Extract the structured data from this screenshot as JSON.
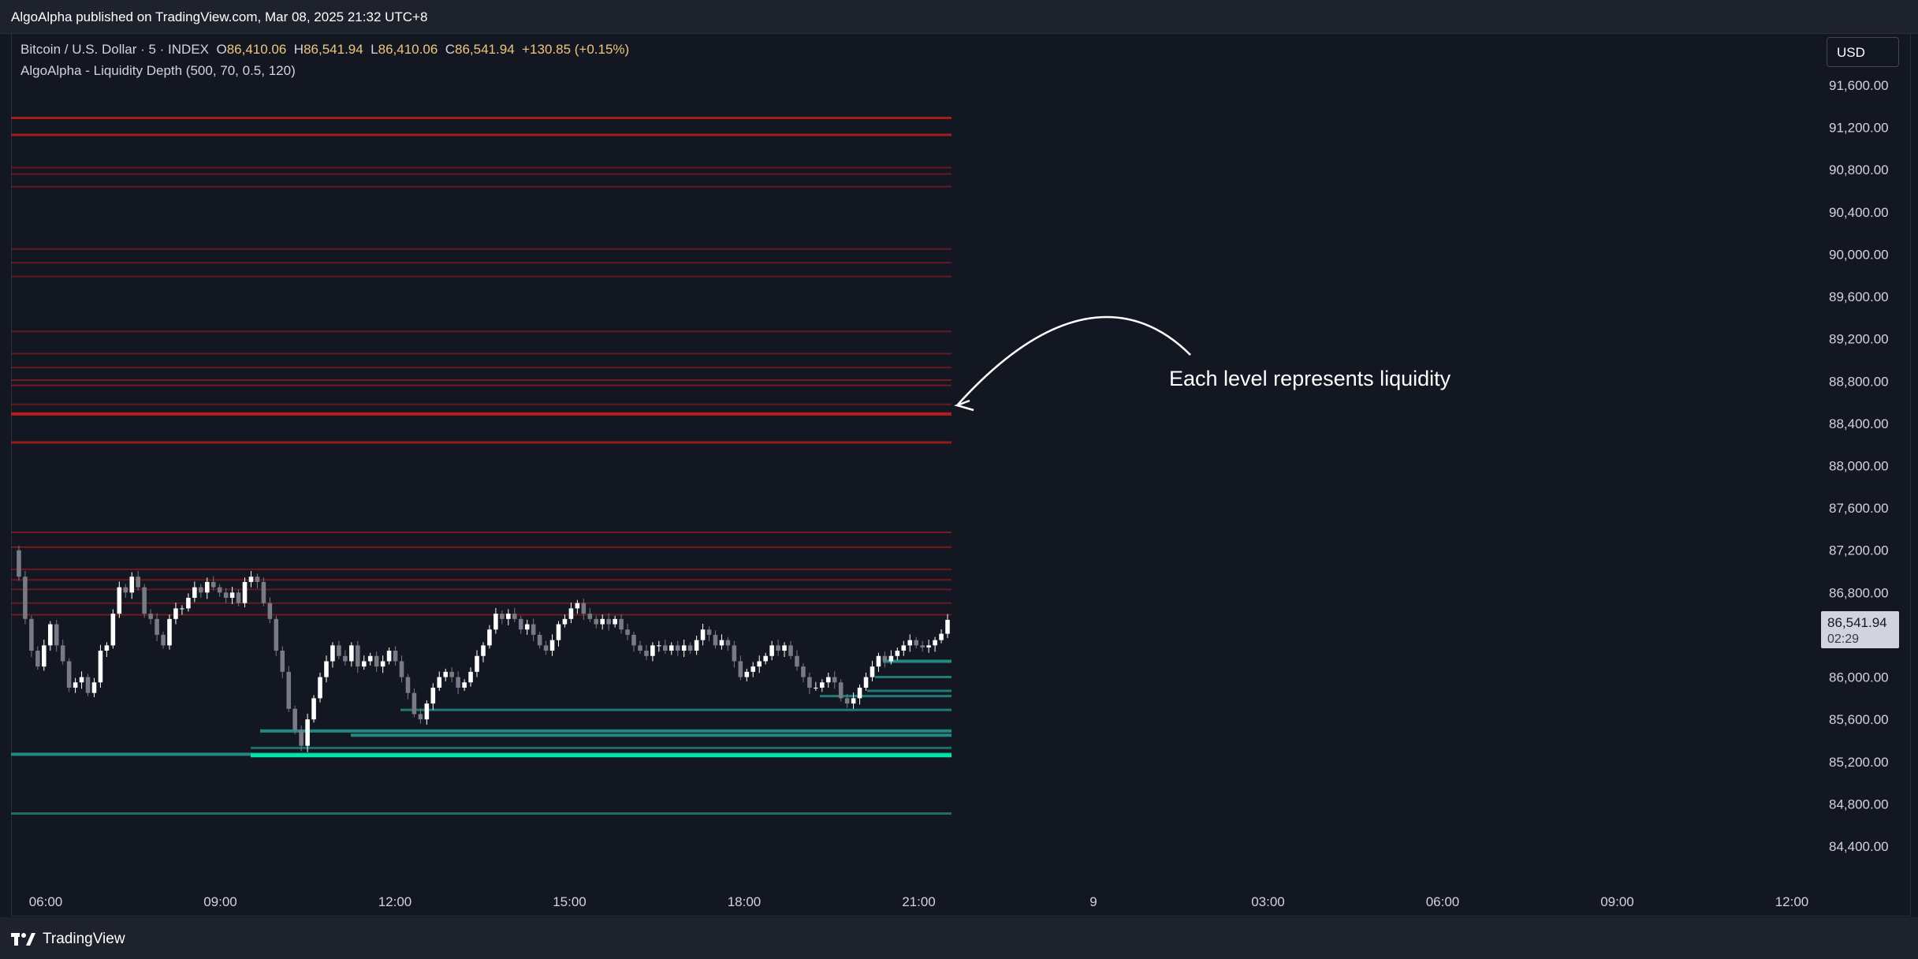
{
  "header": {
    "published_text": "AlgoAlpha published on TradingView.com, Mar 08, 2025 21:32 UTC+8"
  },
  "legend": {
    "symbol": "Bitcoin / U.S. Dollar · 5 · INDEX",
    "open_label": "O",
    "open_value": "86,410.06",
    "high_label": "H",
    "high_value": "86,541.94",
    "low_label": "L",
    "low_value": "86,410.06",
    "close_label": "C",
    "close_value": "86,541.94",
    "change": "+130.85 (+0.15%)",
    "indicator": "AlgoAlpha - Liquidity Depth (500, 70, 0.5, 120)"
  },
  "currency": "USD",
  "price_label": {
    "value": "86,541.94",
    "countdown": "02:29"
  },
  "annotation": {
    "text": "Each level represents liquidity"
  },
  "footer": {
    "brand": "TradingView",
    "logo_icon": "tradingview-logo-icon"
  },
  "colors": {
    "bg": "#131722",
    "red_level": "#b71c1c",
    "green_level": "#26a69a",
    "bright_green": "#00e6a8",
    "candle_up": "#ffffff",
    "candle_down": "#787b86"
  },
  "chart_data": {
    "type": "candlestick",
    "title": "",
    "y_ticks": [
      "91,600.00",
      "91,200.00",
      "90,800.00",
      "90,400.00",
      "90,000.00",
      "89,600.00",
      "89,200.00",
      "88,800.00",
      "88,400.00",
      "88,000.00",
      "87,600.00",
      "87,200.00",
      "86,800.00",
      "86,000.00",
      "85,600.00",
      "85,200.00",
      "84,800.00",
      "84,400.00"
    ],
    "x_ticks": [
      "06:00",
      "09:00",
      "12:00",
      "15:00",
      "18:00",
      "21:00",
      "9",
      "03:00",
      "06:00",
      "09:00",
      "12:00"
    ],
    "ylim": [
      84200,
      91800
    ],
    "resistance_levels": [
      {
        "price": 91290,
        "opacity": 0.9,
        "width": 3
      },
      {
        "price": 91130,
        "opacity": 0.9,
        "width": 3
      },
      {
        "price": 90820,
        "opacity": 0.5,
        "width": 2
      },
      {
        "price": 90760,
        "opacity": 0.5,
        "width": 2
      },
      {
        "price": 90640,
        "opacity": 0.5,
        "width": 2
      },
      {
        "price": 90050,
        "opacity": 0.5,
        "width": 2
      },
      {
        "price": 89920,
        "opacity": 0.5,
        "width": 2
      },
      {
        "price": 89790,
        "opacity": 0.5,
        "width": 2
      },
      {
        "price": 89270,
        "opacity": 0.5,
        "width": 2
      },
      {
        "price": 89060,
        "opacity": 0.5,
        "width": 2
      },
      {
        "price": 88930,
        "opacity": 0.5,
        "width": 2
      },
      {
        "price": 88810,
        "opacity": 0.6,
        "width": 2
      },
      {
        "price": 88760,
        "opacity": 0.6,
        "width": 2
      },
      {
        "price": 88580,
        "opacity": 0.5,
        "width": 2
      },
      {
        "price": 88490,
        "opacity": 1.0,
        "width": 4
      },
      {
        "price": 88220,
        "opacity": 0.8,
        "width": 3
      },
      {
        "price": 87370,
        "opacity": 0.6,
        "width": 2
      },
      {
        "price": 87230,
        "opacity": 0.6,
        "width": 2
      },
      {
        "price": 87020,
        "opacity": 0.55,
        "width": 2
      },
      {
        "price": 86920,
        "opacity": 0.55,
        "width": 2
      },
      {
        "price": 86830,
        "opacity": 0.5,
        "width": 2
      },
      {
        "price": 86700,
        "opacity": 0.55,
        "width": 2
      },
      {
        "price": 86590,
        "opacity": 0.6,
        "width": 2
      }
    ],
    "support_levels": [
      {
        "price": 86150,
        "start": 1120,
        "opacity": 0.8,
        "width": 4
      },
      {
        "price": 86000,
        "start": 1110,
        "opacity": 0.7,
        "width": 3
      },
      {
        "price": 85870,
        "start": 1100,
        "opacity": 0.7,
        "width": 3
      },
      {
        "price": 85820,
        "start": 1040,
        "opacity": 0.7,
        "width": 3
      },
      {
        "price": 85690,
        "start": 508,
        "opacity": 0.7,
        "width": 3
      },
      {
        "price": 85490,
        "start": 330,
        "opacity": 0.8,
        "width": 4
      },
      {
        "price": 85450,
        "start": 445,
        "opacity": 0.8,
        "width": 4
      },
      {
        "price": 85330,
        "start": 318,
        "opacity": 0.6,
        "width": 3
      },
      {
        "price": 85270,
        "start": 14,
        "opacity": 0.8,
        "width": 4
      },
      {
        "price": 85260,
        "start": 318,
        "opacity": 1.0,
        "width": 5,
        "bright": true
      },
      {
        "price": 84710,
        "start": 14,
        "opacity": 0.6,
        "width": 3
      }
    ],
    "close_series": [
      87200,
      86950,
      86550,
      86250,
      86100,
      86300,
      86500,
      86300,
      86150,
      85900,
      85950,
      86000,
      85850,
      85950,
      86250,
      86300,
      86600,
      86850,
      86800,
      86950,
      86850,
      86600,
      86550,
      86400,
      86300,
      86550,
      86650,
      86650,
      86750,
      86850,
      86800,
      86900,
      86850,
      86800,
      86750,
      86800,
      86700,
      86900,
      86950,
      86900,
      86700,
      86550,
      86250,
      86050,
      85700,
      85500,
      85350,
      85600,
      85800,
      86000,
      86150,
      86300,
      86200,
      86150,
      86300,
      86100,
      86150,
      86200,
      86100,
      86150,
      86250,
      86150,
      86000,
      85850,
      85650,
      85600,
      85750,
      85900,
      86000,
      86050,
      86000,
      85900,
      85950,
      86050,
      86200,
      86300,
      86450,
      86600,
      86550,
      86600,
      86550,
      86450,
      86500,
      86400,
      86300,
      86250,
      86350,
      86500,
      86550,
      86650,
      86700,
      86600,
      86550,
      86500,
      86550,
      86500,
      86550,
      86450,
      86400,
      86300,
      86250,
      86200,
      86300,
      86300,
      86250,
      86300,
      86250,
      86300,
      86250,
      86350,
      86450,
      86400,
      86300,
      86350,
      86300,
      86150,
      86000,
      86050,
      86100,
      86150,
      86200,
      86300,
      86250,
      86300,
      86200,
      86100,
      86000,
      85900,
      85900,
      85950,
      86000,
      85950,
      85800,
      85750,
      85800,
      85900,
      86000,
      86100,
      86200,
      86150,
      86200,
      86250,
      86300,
      86350,
      86300,
      86280,
      86300,
      86350,
      86410,
      86541.94
    ]
  }
}
